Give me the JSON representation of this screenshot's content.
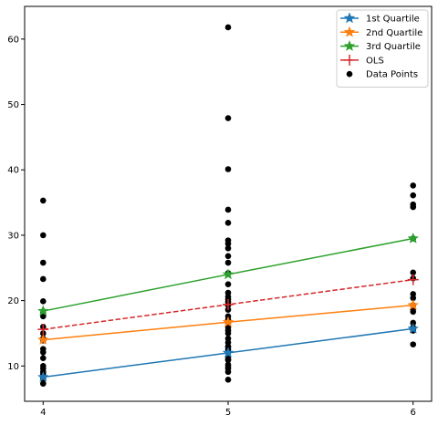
{
  "chart_data": {
    "type": "scatter",
    "title": "",
    "xlabel": "",
    "ylabel": "",
    "xlim": [
      3.9,
      6.1
    ],
    "ylim": [
      4.6,
      65.0
    ],
    "xticks": [
      4,
      5,
      6
    ],
    "yticks": [
      10,
      20,
      30,
      40,
      50,
      60
    ],
    "grid": false,
    "legend_position": "top-right",
    "lines": [
      {
        "name": "1st Quartile",
        "color": "#1f77b4",
        "marker": "star",
        "dash": false,
        "x": [
          4,
          5,
          6
        ],
        "y": [
          8.3,
          12.0,
          15.7
        ]
      },
      {
        "name": "2nd Quartile",
        "color": "#ff7f0e",
        "marker": "star",
        "dash": false,
        "x": [
          4,
          5,
          6
        ],
        "y": [
          14.0,
          16.7,
          19.3
        ]
      },
      {
        "name": "3rd Quartile",
        "color": "#2ca02c",
        "marker": "star",
        "dash": false,
        "x": [
          4,
          5,
          6
        ],
        "y": [
          18.4,
          24.0,
          29.5
        ]
      },
      {
        "name": "OLS",
        "color": "#d62728",
        "marker": "plus",
        "dash": true,
        "x": [
          4,
          5,
          6
        ],
        "y": [
          15.6,
          19.4,
          23.2
        ]
      }
    ],
    "points": {
      "name": "Data Points",
      "color": "#000000",
      "x": [
        4,
        4,
        4,
        4,
        4,
        4,
        4,
        4,
        4,
        4,
        4,
        4,
        4,
        4,
        4,
        4,
        4,
        4,
        4,
        4,
        4,
        4,
        5,
        5,
        5,
        5,
        5,
        5,
        5,
        5,
        5,
        5,
        5,
        5,
        5,
        5,
        5,
        5,
        5,
        5,
        5,
        5,
        5,
        5,
        5,
        5,
        5,
        5,
        5,
        5,
        5,
        5,
        5,
        5,
        5,
        5,
        5,
        5,
        5,
        5,
        6,
        6,
        6,
        6,
        6,
        6,
        6,
        6,
        6,
        6,
        6,
        6,
        6,
        6,
        6,
        6,
        6,
        6
      ],
      "y": [
        35.3,
        30.0,
        25.8,
        23.3,
        19.9,
        18.1,
        17.6,
        16.0,
        15.0,
        14.2,
        13.9,
        12.6,
        12.1,
        11.2,
        10.0,
        9.1,
        8.8,
        8.4,
        8.1,
        8.0,
        7.3,
        9.6,
        61.8,
        47.9,
        40.1,
        33.9,
        31.9,
        29.2,
        28.7,
        28.0,
        26.8,
        25.8,
        24.2,
        22.5,
        21.2,
        20.2,
        19.8,
        19.3,
        18.6,
        17.6,
        16.6,
        15.9,
        15.0,
        14.2,
        13.6,
        12.9,
        12.5,
        12.1,
        11.4,
        10.9,
        10.2,
        9.6,
        9.1,
        7.9,
        20.6,
        17.1,
        15.4,
        13.0,
        11.0,
        9.9,
        37.6,
        36.1,
        34.7,
        34.3,
        29.5,
        24.3,
        23.4,
        21.0,
        20.4,
        19.3,
        18.7,
        18.3,
        16.6,
        15.9,
        15.6,
        15.4,
        13.3,
        15.8
      ]
    }
  }
}
